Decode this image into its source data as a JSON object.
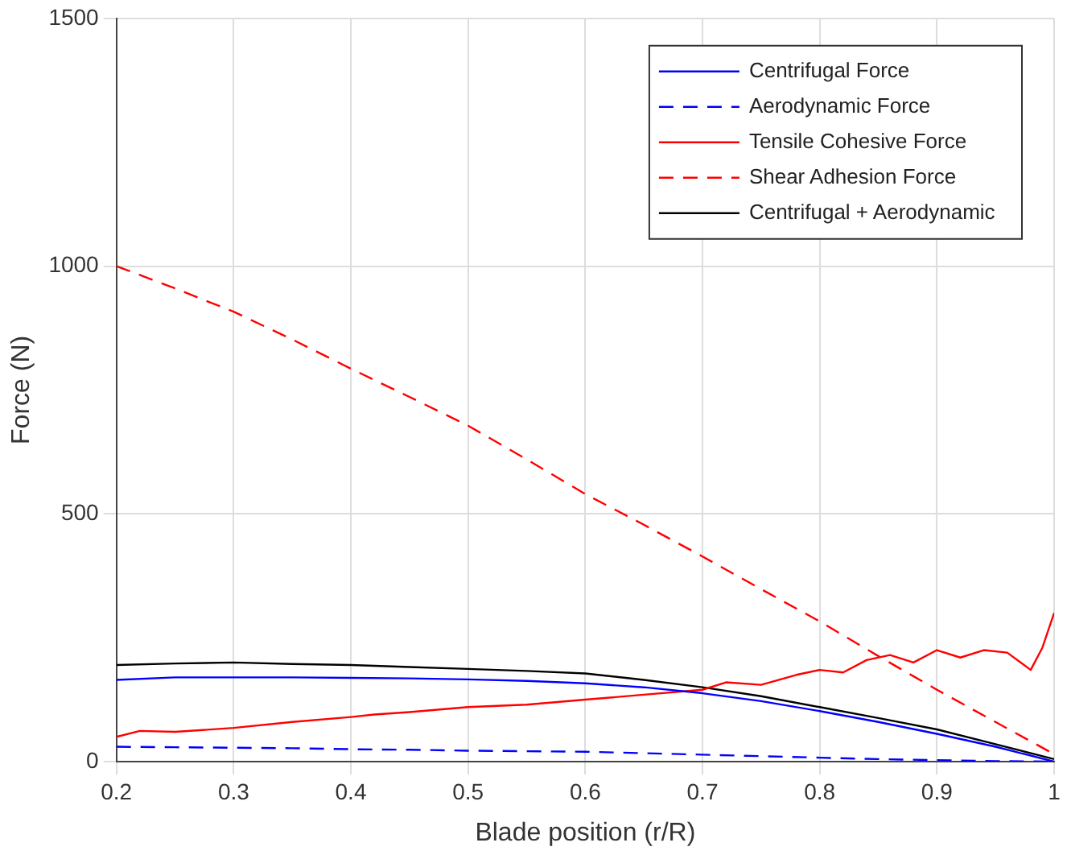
{
  "chart_data": {
    "type": "line",
    "xlabel": "Blade position (r/R)",
    "ylabel": "Force (N)",
    "xlim": [
      0.2,
      1
    ],
    "xticks": [
      0.2,
      0.3,
      0.4,
      0.5,
      0.6,
      0.7,
      0.8,
      0.9,
      1
    ],
    "ylim": [
      0,
      1500
    ],
    "yticks": [
      0,
      500,
      1000,
      1500
    ],
    "grid": true,
    "legend": "top right",
    "marker": "none",
    "x": [
      0.2,
      0.25,
      0.3,
      0.35,
      0.4,
      0.45,
      0.5,
      0.55,
      0.6,
      0.65,
      0.7,
      0.75,
      0.8,
      0.85,
      0.9,
      0.95,
      1
    ],
    "series": [
      {
        "name": "Centrifugal Force",
        "color": "#0000ff",
        "line_style": "solid",
        "values": [
          165,
          170,
          170,
          170,
          169,
          168,
          166,
          163,
          158,
          150,
          138,
          122,
          102,
          80,
          56,
          30,
          0
        ]
      },
      {
        "name": "Aerodynamic Force",
        "color": "#0000ff",
        "line_style": "dashed",
        "values": [
          30,
          29,
          28,
          27,
          25,
          24,
          22,
          21,
          20,
          17,
          14,
          11,
          8,
          5,
          3,
          1,
          0
        ]
      },
      {
        "name": "Tensile Cohesive Force",
        "color": "#ff0000",
        "line_style": "solid",
        "x": [
          0.2,
          0.22,
          0.25,
          0.3,
          0.35,
          0.4,
          0.42,
          0.45,
          0.5,
          0.55,
          0.6,
          0.65,
          0.7,
          0.72,
          0.75,
          0.78,
          0.8,
          0.82,
          0.84,
          0.86,
          0.88,
          0.9,
          0.92,
          0.94,
          0.96,
          0.98,
          0.99,
          1
        ],
        "values": [
          50,
          62,
          60,
          68,
          80,
          90,
          95,
          100,
          110,
          115,
          125,
          135,
          145,
          160,
          155,
          175,
          185,
          180,
          205,
          215,
          200,
          225,
          210,
          225,
          220,
          185,
          230,
          300
        ]
      },
      {
        "name": "Shear Adhesion Force",
        "color": "#ff0000",
        "line_style": "dashed",
        "values": [
          1000,
          955,
          908,
          852,
          793,
          736,
          678,
          610,
          540,
          478,
          414,
          348,
          283,
          213,
          145,
          80,
          15
        ]
      },
      {
        "name": "Centrifugal + Aerodynamic",
        "color": "#000000",
        "line_style": "solid",
        "values": [
          195,
          198,
          200,
          197,
          195,
          191,
          187,
          183,
          178,
          165,
          150,
          132,
          110,
          88,
          65,
          35,
          5
        ]
      }
    ]
  }
}
